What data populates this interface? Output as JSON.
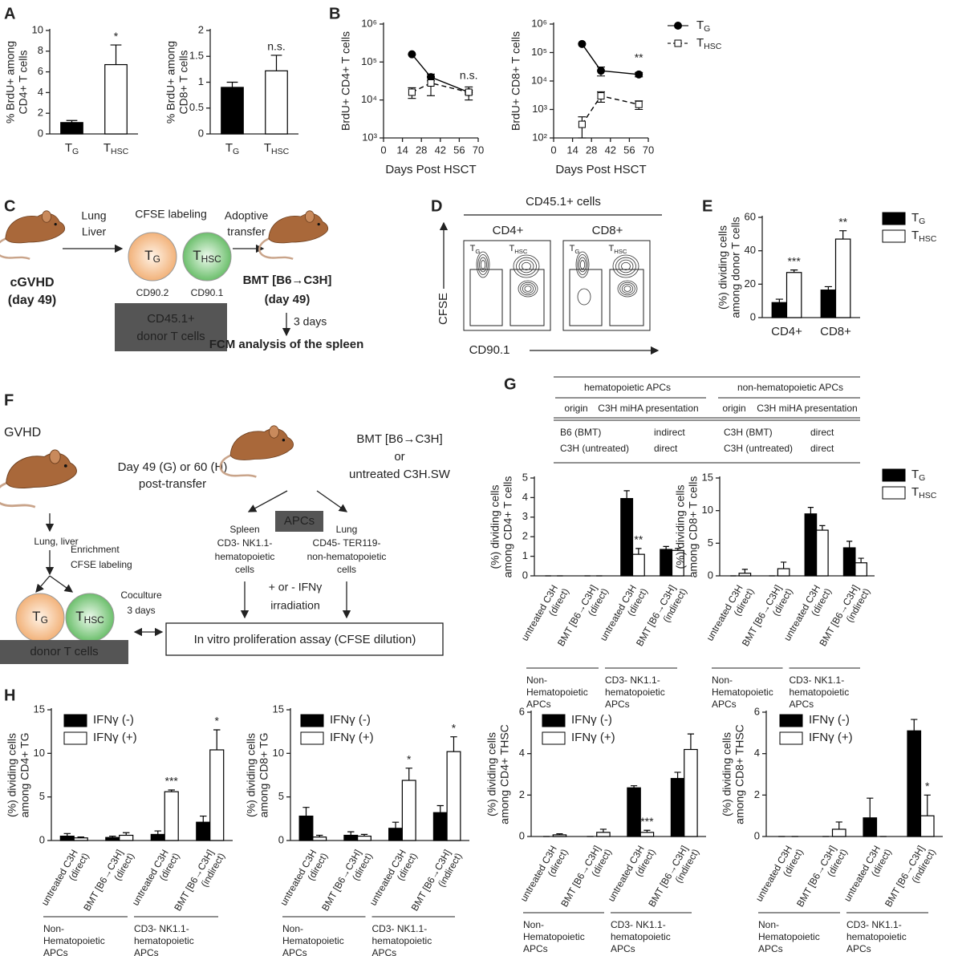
{
  "panel_labels": [
    "A",
    "B",
    "C",
    "D",
    "E",
    "F",
    "G",
    "H"
  ],
  "chart_data": [
    {
      "type": "bar",
      "categories": [
        "TG",
        "THSC"
      ],
      "values": [
        1.1,
        6.7
      ],
      "errors": [
        0.2,
        1.9
      ],
      "colors": [
        "#000000",
        "#ffffff"
      ],
      "significance": [
        null,
        "*"
      ],
      "ylim": [
        0,
        10
      ],
      "yticks": [
        0,
        2,
        4,
        6,
        8,
        10
      ],
      "ylabel": [
        "% BrdU+ among",
        "CD4+ T cells"
      ]
    },
    {
      "type": "bar",
      "categories": [
        "TG",
        "THSC"
      ],
      "values": [
        0.9,
        1.22
      ],
      "errors": [
        0.1,
        0.3
      ],
      "colors": [
        "#000000",
        "#ffffff"
      ],
      "significance": [
        null,
        "n.s."
      ],
      "ylim": [
        0,
        2
      ],
      "yticks": [
        0,
        0.5,
        1,
        1.5,
        2
      ],
      "ylabel": [
        "% BrdU+ among",
        "CD8+ T cells"
      ]
    },
    {
      "type": "line",
      "log_y": true,
      "x": [
        21,
        35,
        63
      ],
      "series": [
        {
          "name": "TG",
          "color": "#000000",
          "marker": "circle",
          "dashed": false,
          "values": [
            160000,
            40000,
            16000
          ],
          "errors": [
            0,
            8000,
            2000
          ]
        },
        {
          "name": "THSC",
          "color": "#ffffff",
          "marker": "square",
          "dashed": true,
          "values": [
            16000,
            28000,
            16000
          ],
          "errors": [
            5000,
            15000,
            6000
          ]
        }
      ],
      "annotation": "n.s.",
      "xlim": [
        0,
        70
      ],
      "xticks": [
        0,
        14,
        28,
        42,
        56,
        70
      ],
      "ylim": [
        1000,
        1000000
      ],
      "yticks": [
        {
          "value": 1000,
          "label": "10³"
        },
        {
          "value": 10000,
          "label": "10⁴"
        },
        {
          "value": 100000,
          "label": "10⁵"
        },
        {
          "value": 1000000,
          "label": "10⁶"
        }
      ],
      "xlabel": "Days Post HSCT",
      "ylabel": [
        "BrdU+ CD4+ T cells"
      ]
    },
    {
      "type": "line",
      "log_y": true,
      "legend": true,
      "x": [
        21,
        35,
        63
      ],
      "series": [
        {
          "name": "TG",
          "color": "#000000",
          "marker": "circle",
          "dashed": false,
          "values": [
            200000,
            23000,
            17000
          ],
          "errors": [
            0,
            8000,
            3000
          ]
        },
        {
          "name": "THSC",
          "color": "#ffffff",
          "marker": "square",
          "dashed": true,
          "values": [
            300,
            3000,
            1500
          ],
          "errors": [
            250,
            1200,
            500
          ]
        }
      ],
      "annotation": "**",
      "xlim": [
        0,
        70
      ],
      "xticks": [
        0,
        14,
        28,
        42,
        56,
        70
      ],
      "ylim": [
        100,
        1000000
      ],
      "yticks": [
        {
          "value": 100,
          "label": "10²"
        },
        {
          "value": 1000,
          "label": "10³"
        },
        {
          "value": 10000,
          "label": "10⁴"
        },
        {
          "value": 100000,
          "label": "10⁵"
        },
        {
          "value": 1000000,
          "label": "10⁶"
        }
      ],
      "xlabel": "Days Post HSCT",
      "ylabel": [
        "BrdU+ CD8+ T cells"
      ]
    },
    {
      "type": "bar",
      "legend": true,
      "categories": [
        "CD4+",
        "CD8+"
      ],
      "series": [
        {
          "name": "TG",
          "color": "#000000",
          "values": [
            9,
            16.5
          ],
          "errors": [
            2,
            2
          ],
          "significance": [
            null,
            null
          ]
        },
        {
          "name": "THSC",
          "color": "#ffffff",
          "values": [
            27,
            47
          ],
          "errors": [
            1.5,
            5
          ],
          "significance": [
            "***",
            "**"
          ]
        }
      ],
      "ylim": [
        0,
        60
      ],
      "yticks": [
        0,
        20,
        40,
        60
      ],
      "ylabel": [
        "(%) dividing cells",
        "among donor T cells"
      ]
    },
    {
      "type": "bar",
      "legend": true,
      "categories": [
        "untreated C3H (direct)",
        "BMT [B6→C3H] (direct)",
        "untreated C3H (direct)",
        "BMT [B6→C3H] (indirect)"
      ],
      "groups": [
        [
          "Non-",
          "Hematopoietic",
          "APCs"
        ],
        [
          "CD3- NK1.1-",
          "hematopoietic",
          "APCs"
        ]
      ],
      "series": [
        {
          "name": "TG",
          "color": "#000000",
          "values": [
            0,
            0,
            3.95,
            1.35
          ],
          "errors": [
            0,
            0,
            0.4,
            0.15
          ],
          "significance": [
            null,
            null,
            null,
            null
          ]
        },
        {
          "name": "THSC",
          "color": "#ffffff",
          "values": [
            0,
            0,
            1.1,
            1.3
          ],
          "errors": [
            0,
            0,
            0.3,
            0.1
          ],
          "significance": [
            null,
            null,
            "**",
            null
          ]
        }
      ],
      "ylim": [
        0,
        5
      ],
      "yticks": [
        0,
        1,
        2,
        3,
        4,
        5
      ],
      "ylabel": [
        "(%) dividing cells",
        "among CD4+ T cells"
      ]
    },
    {
      "type": "bar",
      "categories": [
        "untreated C3H (direct)",
        "BMT [B6→C3H] (direct)",
        "untreated C3H (direct)",
        "BMT [B6→C3H] (indirect)"
      ],
      "groups": [
        [
          "Non-",
          "Hematopoietic",
          "APCs"
        ],
        [
          "CD3- NK1.1-",
          "hematopoietic",
          "APCs"
        ]
      ],
      "series": [
        {
          "name": "TG",
          "color": "#000000",
          "values": [
            0,
            0,
            9.5,
            4.3
          ],
          "errors": [
            0,
            0,
            1,
            1
          ],
          "significance": [
            null,
            null,
            null,
            null
          ]
        },
        {
          "name": "THSC",
          "color": "#ffffff",
          "values": [
            0.4,
            1.1,
            7,
            2
          ],
          "errors": [
            0.6,
            1,
            0.7,
            0.7
          ],
          "significance": [
            null,
            null,
            null,
            null
          ]
        }
      ],
      "ylim": [
        0,
        15
      ],
      "yticks": [
        0,
        5,
        10,
        15
      ],
      "ylabel": [
        "(%) dividing cells",
        "among CD8+ T cells"
      ]
    },
    {
      "type": "bar",
      "legend": true,
      "categories": [
        "untreated C3H (direct)",
        "BMT [B6→C3H] (direct)",
        "untreated C3H (direct)",
        "BMT [B6→C3H] (indirect)"
      ],
      "groups": [
        [
          "Non-",
          "Hematopoietic",
          "APCs"
        ],
        [
          "CD3- NK1.1-",
          "hematopoietic",
          "APCs"
        ]
      ],
      "series": [
        {
          "name": "IFNγ (-)",
          "color": "#000000",
          "values": [
            0.5,
            0.35,
            0.7,
            2.1
          ],
          "errors": [
            0.3,
            0.15,
            0.4,
            0.7
          ],
          "significance": [
            null,
            null,
            null,
            null
          ]
        },
        {
          "name": "IFNγ (+)",
          "color": "#ffffff",
          "values": [
            0.3,
            0.6,
            5.6,
            10.4
          ],
          "errors": [
            0.1,
            0.3,
            0.2,
            2.3
          ],
          "significance": [
            null,
            null,
            "***",
            "*"
          ]
        }
      ],
      "ylim": [
        0,
        15
      ],
      "yticks": [
        0,
        5,
        10,
        15
      ],
      "ylabel": [
        "(%) dividing cells",
        "among CD4+ TG"
      ]
    },
    {
      "type": "bar",
      "legend": true,
      "categories": [
        "untreated C3H (direct)",
        "BMT [B6→C3H] (direct)",
        "untreated C3H (direct)",
        "BMT [B6→C3H] (indirect)"
      ],
      "groups": [
        [
          "Non-",
          "Hematopoietic",
          "APCs"
        ],
        [
          "CD3- NK1.1-",
          "hematopoietic",
          "APCs"
        ]
      ],
      "series": [
        {
          "name": "IFNγ (-)",
          "color": "#000000",
          "values": [
            2.8,
            0.6,
            1.4,
            3.2
          ],
          "errors": [
            1,
            0.4,
            0.7,
            0.8
          ],
          "significance": [
            null,
            null,
            null,
            null
          ]
        },
        {
          "name": "IFNγ (+)",
          "color": "#ffffff",
          "values": [
            0.4,
            0.5,
            6.9,
            10.2
          ],
          "errors": [
            0.2,
            0.2,
            1.4,
            1.7
          ],
          "significance": [
            null,
            null,
            "*",
            "*"
          ]
        }
      ],
      "ylim": [
        0,
        15
      ],
      "yticks": [
        0,
        5,
        10,
        15
      ],
      "ylabel": [
        "(%) dividing cells",
        "among CD8+ TG"
      ]
    },
    {
      "type": "bar",
      "legend": true,
      "categories": [
        "untreated C3H (direct)",
        "BMT [B6→C3H] (direct)",
        "untreated C3H (direct)",
        "BMT [B6→C3H] (indirect)"
      ],
      "groups": [
        [
          "Non-",
          "Hematopoietic",
          "APCs"
        ],
        [
          "CD3- NK1.1-",
          "hematopoietic",
          "APCs"
        ]
      ],
      "series": [
        {
          "name": "IFNγ (-)",
          "color": "#000000",
          "values": [
            0,
            0,
            2.35,
            2.8
          ],
          "errors": [
            0,
            0,
            0.1,
            0.3
          ],
          "significance": [
            null,
            null,
            null,
            null
          ]
        },
        {
          "name": "IFNγ (+)",
          "color": "#ffffff",
          "values": [
            0.08,
            0.2,
            0.2,
            4.2
          ],
          "errors": [
            0.05,
            0.15,
            0.1,
            0.75
          ],
          "significance": [
            null,
            null,
            "***",
            null
          ]
        }
      ],
      "ylim": [
        0,
        6
      ],
      "yticks": [
        0,
        2,
        4,
        6
      ],
      "ylabel": [
        "(%) dividing cells",
        "among CD4+ THSC"
      ]
    },
    {
      "type": "bar",
      "legend": true,
      "categories": [
        "untreated C3H (direct)",
        "BMT [B6→C3H] (direct)",
        "untreated C3H (direct)",
        "BMT [B6→C3H] (indirect)"
      ],
      "groups": [
        [
          "Non-",
          "Hematopoietic",
          "APCs"
        ],
        [
          "CD3- NK1.1-",
          "hematopoietic",
          "APCs"
        ]
      ],
      "series": [
        {
          "name": "IFNγ (-)",
          "color": "#000000",
          "values": [
            0,
            0,
            0.9,
            5.1
          ],
          "errors": [
            0,
            0,
            0.95,
            0.55
          ],
          "significance": [
            null,
            null,
            null,
            null
          ]
        },
        {
          "name": "IFNγ (+)",
          "color": "#ffffff",
          "values": [
            0,
            0.35,
            0,
            1.0
          ],
          "errors": [
            0,
            0.35,
            0,
            1.0
          ],
          "significance": [
            null,
            null,
            null,
            "*"
          ]
        }
      ],
      "ylim": [
        0,
        6
      ],
      "yticks": [
        0,
        2,
        4,
        6
      ],
      "ylabel": [
        "(%) dividing cells",
        "among CD8+ THSC"
      ]
    }
  ],
  "diagram_c": {
    "left_mouse": [
      "cGVHD",
      "(day 49)"
    ],
    "arrow1": [
      "Lung",
      "Liver"
    ],
    "labeling": "CFSE labeling",
    "cells": [
      "TG",
      "THSC"
    ],
    "markers": [
      "CD90.2",
      "CD90.1"
    ],
    "box": [
      "CD45.1+",
      "donor T cells"
    ],
    "arrow2": [
      "Adoptive",
      "transfer"
    ],
    "right_mouse": [
      "BMT [B6→C3H]",
      "(day 49)"
    ],
    "arrow3": "3 days",
    "result": "FCM analysis of the spleen"
  },
  "flow_d": {
    "title": "CD45.1+ cells",
    "columns": [
      "CD4+",
      "CD8+"
    ],
    "gates": [
      "TG",
      "THSC"
    ],
    "y_axis": "CFSE",
    "x_axis": "CD90.1"
  },
  "diagram_f": {
    "left_title": "GVHD",
    "tissue": "Lung, liver",
    "steps": [
      "Enrichment",
      "CFSE labeling"
    ],
    "cells": [
      "TG",
      "THSC"
    ],
    "donor": "donor T cells",
    "timing": [
      "Day 49 (G) or 60 (H)",
      "post-transfer"
    ],
    "recipient": [
      "BMT [B6→C3H]",
      "or",
      "untreated C3H.SW"
    ],
    "apcs": "APCs",
    "spleen": [
      "Spleen",
      "CD3- NK1.1-",
      "hematopoietic",
      "cells"
    ],
    "lung": [
      "Lung",
      "CD45- TER119-",
      "non-hematopoietic",
      "cells"
    ],
    "treatment": [
      "+ or - IFNγ",
      "irradiation"
    ],
    "coculture": [
      "Coculture",
      "3 days"
    ],
    "assay": "In vitro proliferation assay (CFSE dilution)"
  },
  "table_g": {
    "groups": [
      "hematopoietic APCs",
      "non-hematopoietic APCs"
    ],
    "header": [
      "origin",
      "C3H miHA presentation",
      "origin",
      "C3H miHA presentation"
    ],
    "rows": [
      [
        "B6 (BMT)",
        "indirect",
        "C3H (BMT)",
        "direct"
      ],
      [
        "C3H (untreated)",
        "direct",
        "C3H (untreated)",
        "direct"
      ]
    ]
  }
}
